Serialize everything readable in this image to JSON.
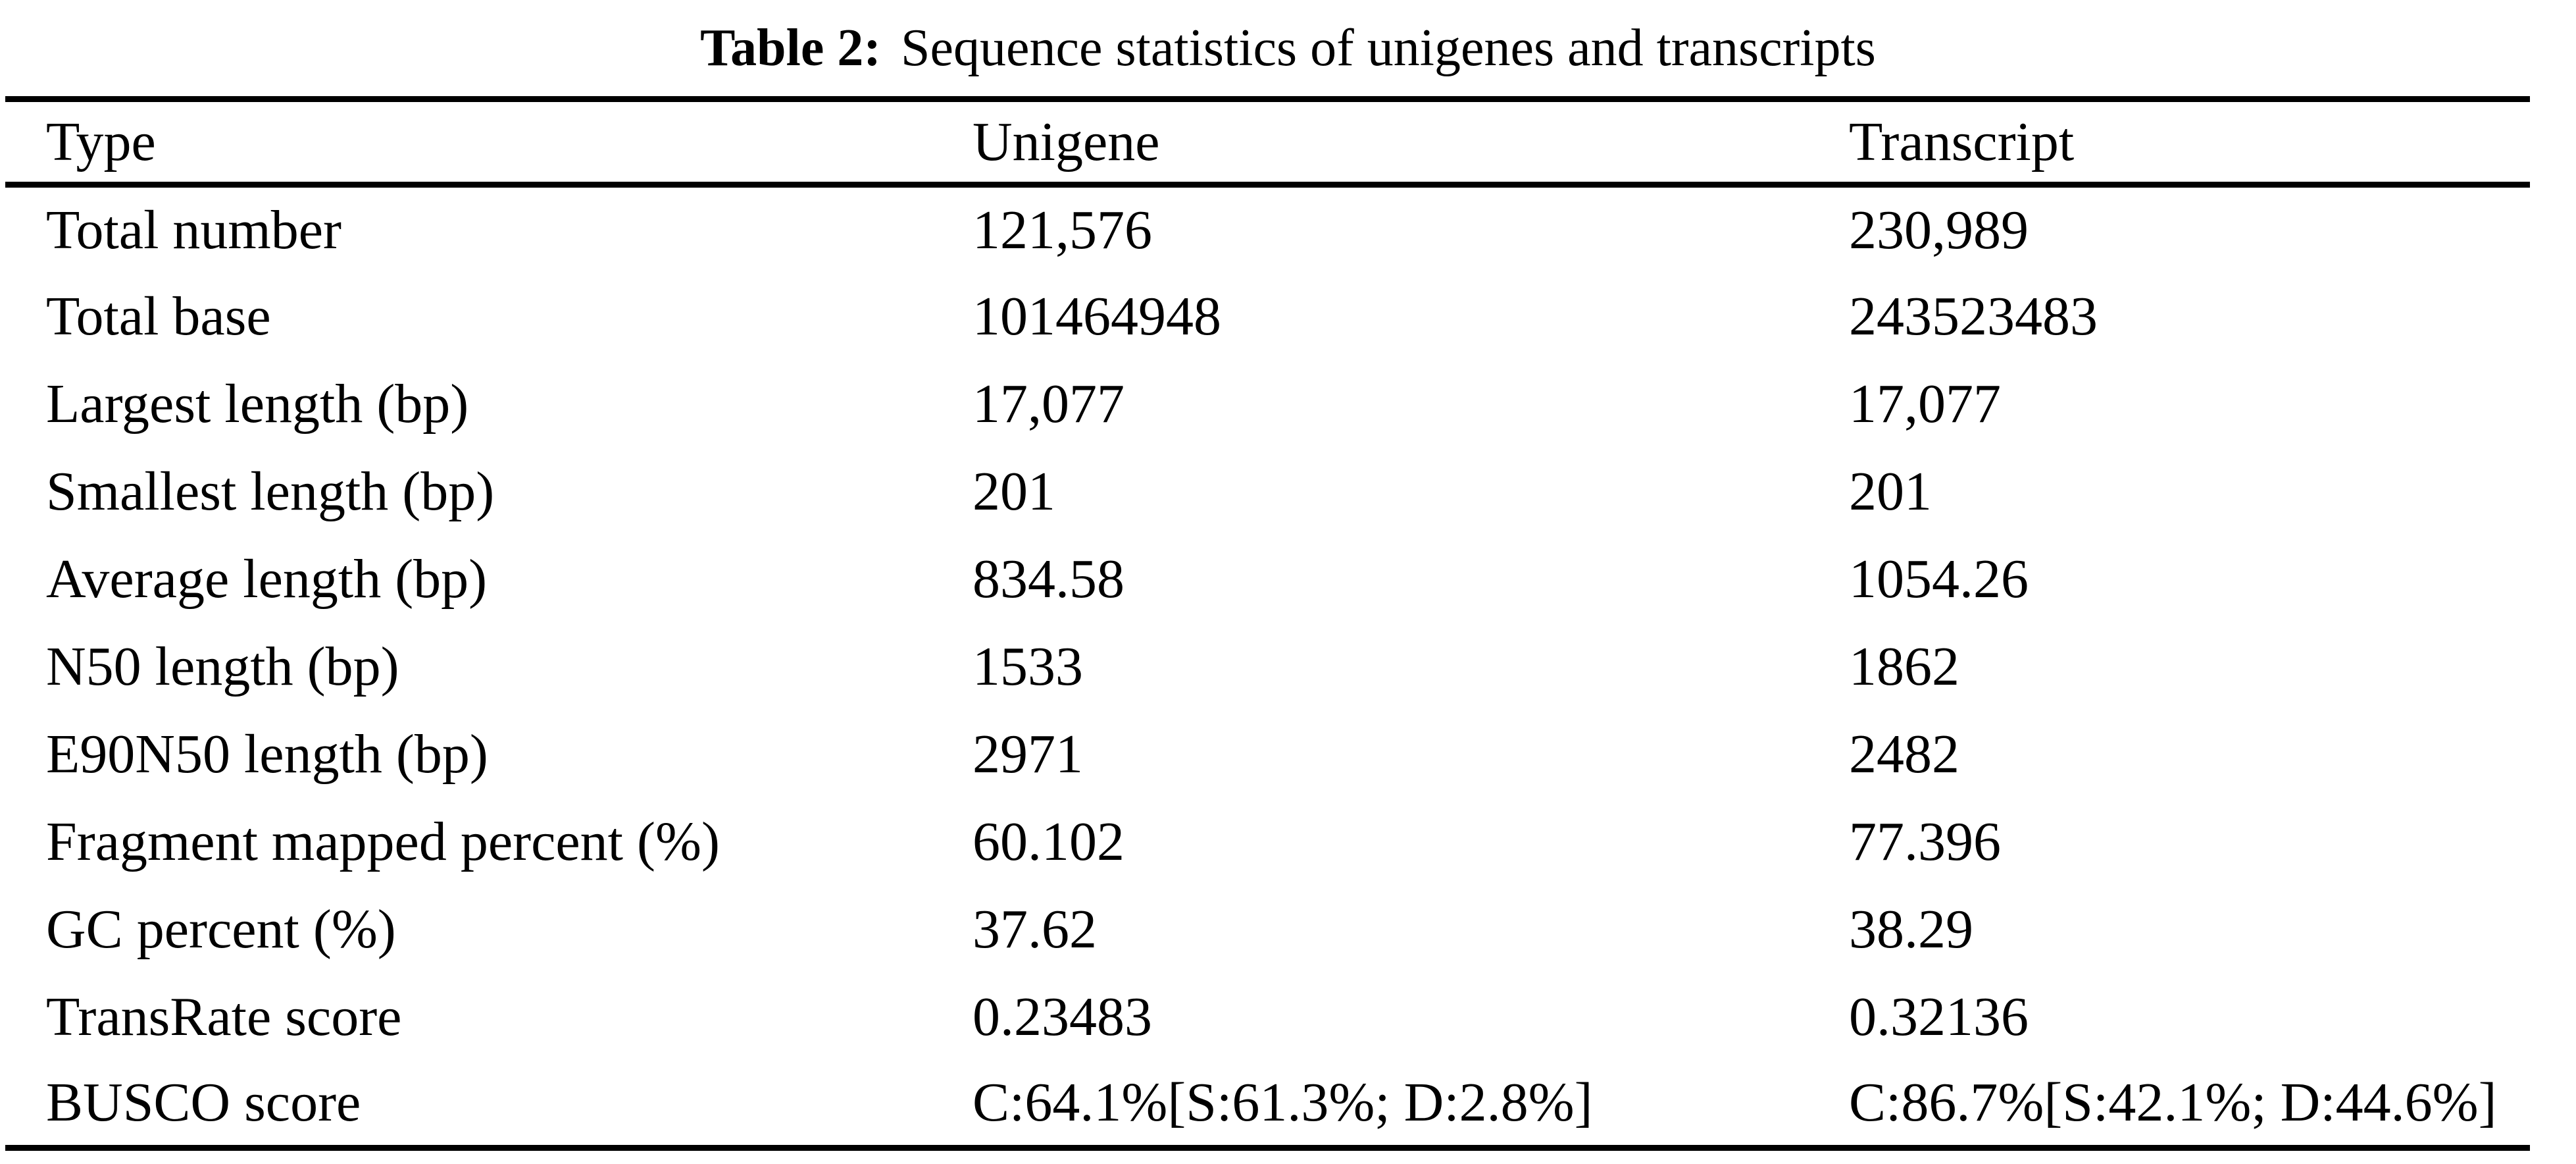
{
  "caption": {
    "label": "Table 2:",
    "text": "Sequence statistics of unigenes and transcripts"
  },
  "table": {
    "columns": [
      "Type",
      "Unigene",
      "Transcript"
    ],
    "rows": [
      {
        "label": "Total number",
        "unigene": "121,576",
        "transcript": "230,989"
      },
      {
        "label": "Total base",
        "unigene": "101464948",
        "transcript": "243523483"
      },
      {
        "label": "Largest length (bp)",
        "unigene": "17,077",
        "transcript": "17,077"
      },
      {
        "label": "Smallest length (bp)",
        "unigene": "201",
        "transcript": "201"
      },
      {
        "label": "Average length (bp)",
        "unigene": "834.58",
        "transcript": "1054.26"
      },
      {
        "label": "N50 length (bp)",
        "unigene": "1533",
        "transcript": "1862"
      },
      {
        "label": "E90N50 length (bp)",
        "unigene": "2971",
        "transcript": "2482"
      },
      {
        "label": "Fragment mapped percent (%)",
        "unigene": "60.102",
        "transcript": "77.396"
      },
      {
        "label": "GC percent (%)",
        "unigene": "37.62",
        "transcript": "38.29"
      },
      {
        "label": "TransRate score",
        "unigene": "0.23483",
        "transcript": "0.32136"
      },
      {
        "label": "BUSCO score",
        "unigene": "C:64.1%[S:61.3%; D:2.8%]",
        "transcript": "C:86.7%[S:42.1%; D:44.6%]"
      }
    ]
  },
  "colors": {
    "background": "#ffffff",
    "text": "#000000",
    "rule": "#000000"
  }
}
